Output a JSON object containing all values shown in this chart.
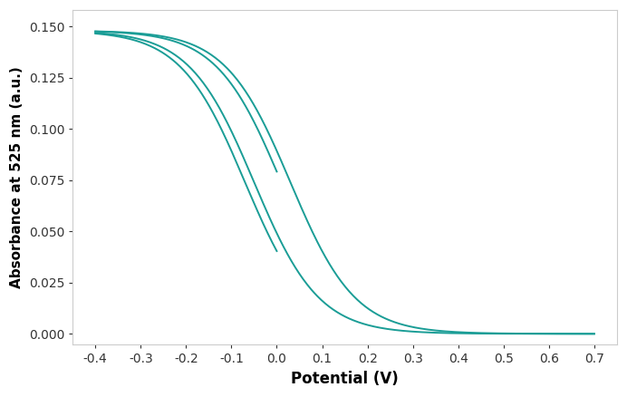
{
  "xlabel": "Potential (V)",
  "ylabel": "Absorbance at 525 nm (a.u.)",
  "xlim": [
    -0.45,
    0.75
  ],
  "ylim": [
    -0.005,
    0.158
  ],
  "xticks": [
    -0.4,
    -0.3,
    -0.2,
    -0.1,
    0.0,
    0.1,
    0.2,
    0.3,
    0.4,
    0.5,
    0.6,
    0.7
  ],
  "yticks": [
    0.0,
    0.025,
    0.05,
    0.075,
    0.1,
    0.125,
    0.15
  ],
  "line_color": "#1a9d96",
  "line_width": 1.4,
  "background_color": "#ffffff",
  "xlabel_fontsize": 12,
  "ylabel_fontsize": 11,
  "tick_fontsize": 10
}
